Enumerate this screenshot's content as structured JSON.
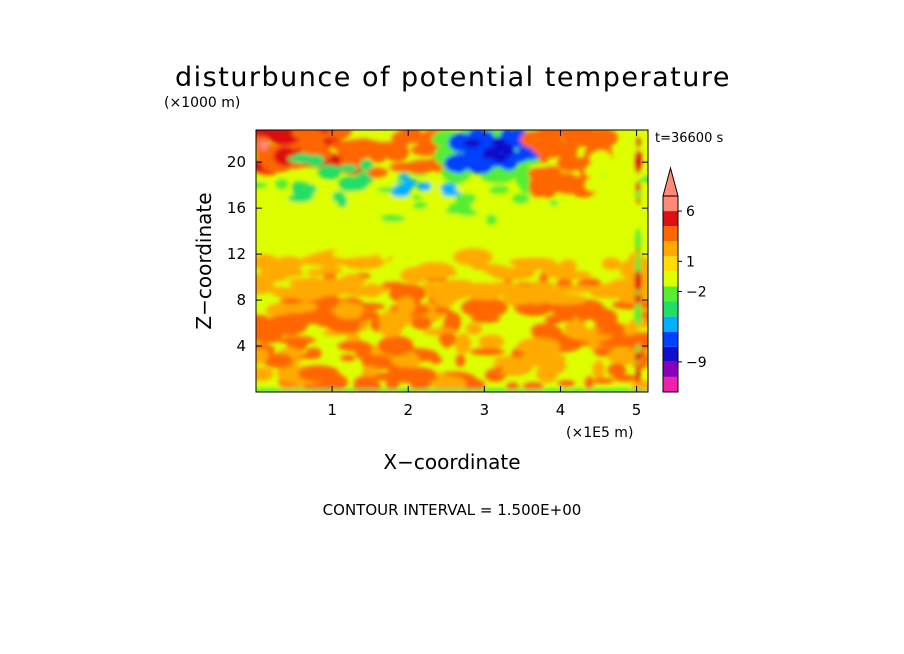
{
  "chart_data": {
    "type": "heatmap",
    "title": "disturbunce of potential temperature",
    "y_unit": "(×1000 m)",
    "x_unit": "(×1E5 m)",
    "xlabel": "X−coordinate",
    "ylabel": "Z−coordinate",
    "time_label": "t=36600 s",
    "footer": "CONTOUR INTERVAL = 1.500E+00",
    "xlim": [
      0,
      5.15
    ],
    "ylim": [
      0,
      22.8
    ],
    "x_ticks": [
      {
        "value": 1,
        "label": "1"
      },
      {
        "value": 2,
        "label": "2"
      },
      {
        "value": 3,
        "label": "3"
      },
      {
        "value": 4,
        "label": "4"
      },
      {
        "value": 5,
        "label": "5"
      }
    ],
    "y_ticks": [
      {
        "value": 4,
        "label": "4"
      },
      {
        "value": 8,
        "label": "8"
      },
      {
        "value": 12,
        "label": "12"
      },
      {
        "value": 16,
        "label": "16"
      },
      {
        "value": 20,
        "label": "20"
      }
    ],
    "contour_interval": 1.5,
    "colorbar": {
      "levels": [
        {
          "color": "#ee22aa"
        },
        {
          "color": "#8800bb"
        },
        {
          "color": "#1010cc"
        },
        {
          "color": "#0040ff"
        },
        {
          "color": "#00b0ff"
        },
        {
          "color": "#22dd66"
        },
        {
          "color": "#55ee33"
        },
        {
          "color": "#ddff00"
        },
        {
          "color": "#ffdd00"
        },
        {
          "color": "#ffaa00"
        },
        {
          "color": "#ff6600"
        },
        {
          "color": "#dd1111"
        },
        {
          "color": "#ff8877"
        }
      ],
      "labels": [
        {
          "value": 6,
          "label": "6"
        },
        {
          "value": 1,
          "label": "1"
        },
        {
          "value": -2,
          "label": "−2"
        },
        {
          "value": -9,
          "label": "−9"
        }
      ],
      "extend": "max"
    },
    "field_regions": [
      {
        "label": "upper-left warm anomaly",
        "x": [
          0,
          1.3
        ],
        "y": [
          19,
          22.8
        ],
        "value": 4.5
      },
      {
        "label": "cold core near x=3",
        "x": [
          2.5,
          3.7
        ],
        "y": [
          18.5,
          22.8
        ],
        "value": -6
      },
      {
        "label": "warm plume near x=4",
        "x": [
          3.6,
          4.6
        ],
        "y": [
          17,
          22.8
        ],
        "value": 3
      },
      {
        "label": "mid-level band",
        "x": [
          0,
          5.15
        ],
        "y": [
          12,
          16
        ],
        "value": -0.5
      },
      {
        "label": "lower layer",
        "x": [
          0,
          5.15
        ],
        "y": [
          0,
          12
        ],
        "value": 1.5
      }
    ]
  }
}
